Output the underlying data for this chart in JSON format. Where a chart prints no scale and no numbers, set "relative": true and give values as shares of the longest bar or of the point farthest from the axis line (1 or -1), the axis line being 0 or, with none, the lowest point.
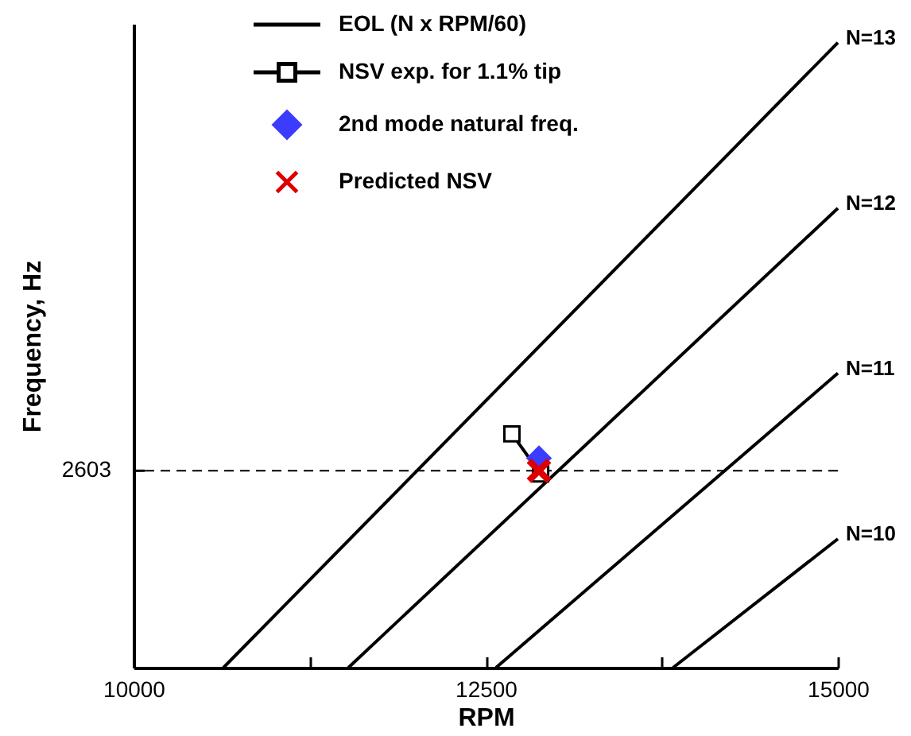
{
  "chart_data": {
    "type": "line",
    "xlabel": "RPM",
    "ylabel": "Frequency, Hz",
    "relative": true,
    "xlim": [
      10000,
      15000
    ],
    "xticks": [
      10000,
      {
        "value": 11250,
        "label": null
      },
      12500,
      {
        "value": 13750,
        "label": null
      },
      15000
    ],
    "grid": false,
    "legend": "top left",
    "marker": "none",
    "line_style": "solid",
    "series": [
      {
        "name": "EOL (N x RPM/60)",
        "color": "#000000",
        "x": [
          10638,
          15000
        ],
        "values": [
          0,
          1
        ]
      },
      {
        "color": "#000000",
        "x": [
          11525,
          15000
        ],
        "values": [
          0,
          0.735
        ]
      },
      {
        "color": "#000000",
        "x": [
          12573,
          15000
        ],
        "values": [
          0,
          0.471
        ]
      },
      {
        "color": "#000000",
        "x": [
          13830,
          15000
        ],
        "values": [
          0,
          0.206
        ]
      },
      {
        "name": "NSV exp. for 1.1% tip",
        "marker": "square",
        "color": "#000000",
        "x": [
          12686,
          12890
        ],
        "values": [
          0.374,
          0.31
        ]
      },
      {
        "name": "2nd mode natural freq.",
        "type": "scatter",
        "marker": "diamond",
        "color": "#3c3cff",
        "x": [
          12878
        ],
        "values": [
          0.335
        ]
      },
      {
        "name": "Predicted NSV",
        "type": "scatter",
        "marker": "cross",
        "color": "#dd0000",
        "x": [
          12878
        ],
        "values": [
          0.315
        ]
      }
    ],
    "ref_lines": [
      {
        "axis": "y",
        "value": 0.315,
        "line_style": "dashed",
        "color": "#000000"
      }
    ],
    "annotations": [
      "2603",
      "N=13",
      "N=12",
      "N=11",
      "N=10"
    ]
  }
}
